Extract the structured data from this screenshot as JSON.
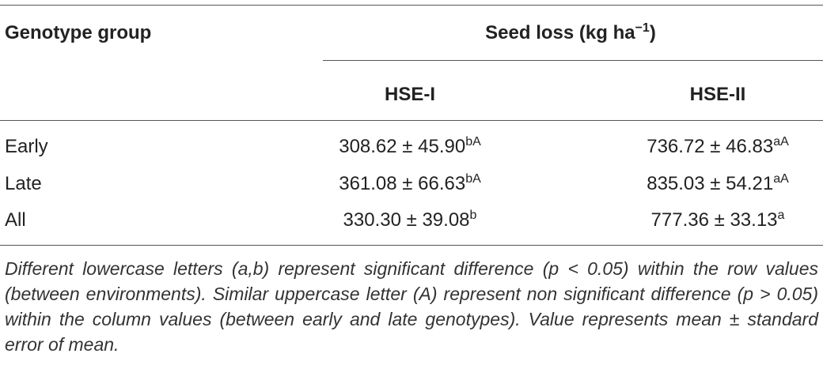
{
  "table": {
    "header": {
      "group": "Genotype group",
      "span": "Seed loss (kg ha",
      "span_sup": "−1",
      "span_close": ")",
      "columns": [
        "HSE-I",
        "HSE-II"
      ]
    },
    "rows": [
      {
        "label": "Early",
        "cells": [
          {
            "value": "308.62 ± 45.90",
            "sup": "bA"
          },
          {
            "value": "736.72 ± 46.83",
            "sup": "aA"
          }
        ]
      },
      {
        "label": "Late",
        "cells": [
          {
            "value": "361.08 ± 66.63",
            "sup": "bA"
          },
          {
            "value": "835.03 ± 54.21",
            "sup": "aA"
          }
        ]
      },
      {
        "label": "All",
        "cells": [
          {
            "value": "330.30 ± 39.08",
            "sup": "b"
          },
          {
            "value": "777.36 ± 33.13",
            "sup": "a"
          }
        ]
      }
    ],
    "footnote": "Different lowercase letters (a,b) represent significant difference (p < 0.05) within the row values (between environments). Similar uppercase letter (A) represent non significant difference (p > 0.05) within the column values (between early and late genotypes). Value represents mean ± standard error of mean."
  }
}
